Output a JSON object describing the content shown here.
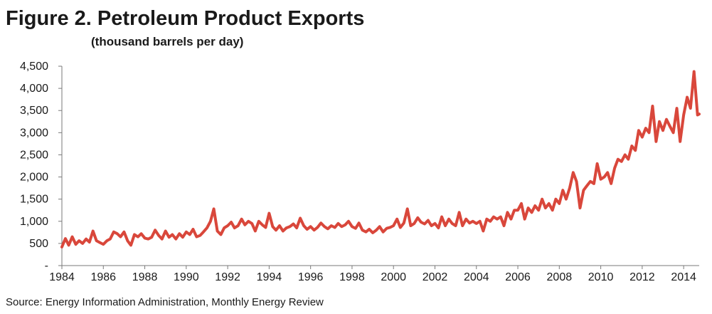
{
  "chart_data": {
    "type": "line",
    "title": "Figure 2. Petroleum Product Exports",
    "subtitle": "(thousand barrels per day)",
    "source": "Source: Energy Information Administration, Monthly Energy Review",
    "xlabel": "",
    "ylabel": "",
    "xlim": [
      1984,
      2014.75
    ],
    "ylim": [
      0,
      4500
    ],
    "y_ticks": [
      {
        "value": 0,
        "label": "-"
      },
      {
        "value": 500,
        "label": "500"
      },
      {
        "value": 1000,
        "label": "1,000"
      },
      {
        "value": 1500,
        "label": "1,500"
      },
      {
        "value": 2000,
        "label": "2,000"
      },
      {
        "value": 2500,
        "label": "2,500"
      },
      {
        "value": 3000,
        "label": "3,000"
      },
      {
        "value": 3500,
        "label": "3,500"
      },
      {
        "value": 4000,
        "label": "4,000"
      },
      {
        "value": 4500,
        "label": "4,500"
      }
    ],
    "x_ticks": [
      {
        "value": 1984,
        "label": "1984"
      },
      {
        "value": 1986,
        "label": "1986"
      },
      {
        "value": 1988,
        "label": "1988"
      },
      {
        "value": 1990,
        "label": "1990"
      },
      {
        "value": 1992,
        "label": "1992"
      },
      {
        "value": 1994,
        "label": "1994"
      },
      {
        "value": 1996,
        "label": "1996"
      },
      {
        "value": 1998,
        "label": "1998"
      },
      {
        "value": 2000,
        "label": "2000"
      },
      {
        "value": 2002,
        "label": "2002"
      },
      {
        "value": 2004,
        "label": "2004"
      },
      {
        "value": 2006,
        "label": "2006"
      },
      {
        "value": 2008,
        "label": "2008"
      },
      {
        "value": 2010,
        "label": "2010"
      },
      {
        "value": 2012,
        "label": "2012"
      },
      {
        "value": 2014,
        "label": "2014"
      }
    ],
    "grid": false,
    "series": [
      {
        "color": "#d9473b",
        "points": [
          [
            1984.0,
            420
          ],
          [
            1984.17,
            610
          ],
          [
            1984.33,
            460
          ],
          [
            1984.5,
            650
          ],
          [
            1984.67,
            480
          ],
          [
            1984.83,
            560
          ],
          [
            1985.0,
            500
          ],
          [
            1985.17,
            600
          ],
          [
            1985.33,
            530
          ],
          [
            1985.5,
            780
          ],
          [
            1985.67,
            560
          ],
          [
            1985.83,
            520
          ],
          [
            1986.0,
            480
          ],
          [
            1986.17,
            560
          ],
          [
            1986.33,
            600
          ],
          [
            1986.5,
            760
          ],
          [
            1986.67,
            720
          ],
          [
            1986.83,
            650
          ],
          [
            1987.0,
            760
          ],
          [
            1987.17,
            560
          ],
          [
            1987.33,
            460
          ],
          [
            1987.5,
            700
          ],
          [
            1987.67,
            650
          ],
          [
            1987.83,
            720
          ],
          [
            1988.0,
            620
          ],
          [
            1988.17,
            600
          ],
          [
            1988.33,
            640
          ],
          [
            1988.5,
            800
          ],
          [
            1988.67,
            680
          ],
          [
            1988.83,
            600
          ],
          [
            1989.0,
            780
          ],
          [
            1989.17,
            640
          ],
          [
            1989.33,
            700
          ],
          [
            1989.5,
            600
          ],
          [
            1989.67,
            720
          ],
          [
            1989.83,
            640
          ],
          [
            1990.0,
            760
          ],
          [
            1990.17,
            700
          ],
          [
            1990.33,
            820
          ],
          [
            1990.5,
            650
          ],
          [
            1990.67,
            680
          ],
          [
            1990.83,
            760
          ],
          [
            1991.0,
            850
          ],
          [
            1991.17,
            1000
          ],
          [
            1991.33,
            1280
          ],
          [
            1991.5,
            780
          ],
          [
            1991.67,
            700
          ],
          [
            1991.83,
            850
          ],
          [
            1992.0,
            900
          ],
          [
            1992.17,
            980
          ],
          [
            1992.33,
            850
          ],
          [
            1992.5,
            900
          ],
          [
            1992.67,
            1050
          ],
          [
            1992.83,
            920
          ],
          [
            1993.0,
            1000
          ],
          [
            1993.17,
            950
          ],
          [
            1993.33,
            780
          ],
          [
            1993.5,
            1000
          ],
          [
            1993.67,
            920
          ],
          [
            1993.83,
            860
          ],
          [
            1994.0,
            1180
          ],
          [
            1994.17,
            880
          ],
          [
            1994.33,
            800
          ],
          [
            1994.5,
            900
          ],
          [
            1994.67,
            780
          ],
          [
            1994.83,
            850
          ],
          [
            1995.0,
            880
          ],
          [
            1995.17,
            940
          ],
          [
            1995.33,
            850
          ],
          [
            1995.5,
            1070
          ],
          [
            1995.67,
            900
          ],
          [
            1995.83,
            820
          ],
          [
            1996.0,
            880
          ],
          [
            1996.17,
            800
          ],
          [
            1996.33,
            860
          ],
          [
            1996.5,
            960
          ],
          [
            1996.67,
            880
          ],
          [
            1996.83,
            830
          ],
          [
            1997.0,
            900
          ],
          [
            1997.17,
            860
          ],
          [
            1997.33,
            950
          ],
          [
            1997.5,
            880
          ],
          [
            1997.67,
            920
          ],
          [
            1997.83,
            1000
          ],
          [
            1998.0,
            880
          ],
          [
            1998.17,
            840
          ],
          [
            1998.33,
            960
          ],
          [
            1998.5,
            800
          ],
          [
            1998.67,
            760
          ],
          [
            1998.83,
            820
          ],
          [
            1999.0,
            740
          ],
          [
            1999.17,
            800
          ],
          [
            1999.33,
            880
          ],
          [
            1999.5,
            760
          ],
          [
            1999.67,
            840
          ],
          [
            1999.83,
            860
          ],
          [
            2000.0,
            900
          ],
          [
            2000.17,
            1050
          ],
          [
            2000.33,
            860
          ],
          [
            2000.5,
            960
          ],
          [
            2000.67,
            1280
          ],
          [
            2000.83,
            900
          ],
          [
            2001.0,
            950
          ],
          [
            2001.17,
            1080
          ],
          [
            2001.33,
            980
          ],
          [
            2001.5,
            940
          ],
          [
            2001.67,
            1020
          ],
          [
            2001.83,
            900
          ],
          [
            2002.0,
            950
          ],
          [
            2002.17,
            850
          ],
          [
            2002.33,
            1100
          ],
          [
            2002.5,
            900
          ],
          [
            2002.67,
            1050
          ],
          [
            2002.83,
            950
          ],
          [
            2003.0,
            900
          ],
          [
            2003.17,
            1200
          ],
          [
            2003.33,
            900
          ],
          [
            2003.5,
            1050
          ],
          [
            2003.67,
            960
          ],
          [
            2003.83,
            1000
          ],
          [
            2004.0,
            950
          ],
          [
            2004.17,
            1000
          ],
          [
            2004.33,
            780
          ],
          [
            2004.5,
            1050
          ],
          [
            2004.67,
            1000
          ],
          [
            2004.83,
            1100
          ],
          [
            2005.0,
            1050
          ],
          [
            2005.17,
            1100
          ],
          [
            2005.33,
            900
          ],
          [
            2005.5,
            1200
          ],
          [
            2005.67,
            1050
          ],
          [
            2005.83,
            1250
          ],
          [
            2006.0,
            1250
          ],
          [
            2006.17,
            1400
          ],
          [
            2006.33,
            1050
          ],
          [
            2006.5,
            1300
          ],
          [
            2006.67,
            1200
          ],
          [
            2006.83,
            1350
          ],
          [
            2007.0,
            1250
          ],
          [
            2007.17,
            1500
          ],
          [
            2007.33,
            1300
          ],
          [
            2007.5,
            1400
          ],
          [
            2007.67,
            1250
          ],
          [
            2007.83,
            1500
          ],
          [
            2008.0,
            1400
          ],
          [
            2008.17,
            1700
          ],
          [
            2008.33,
            1500
          ],
          [
            2008.5,
            1750
          ],
          [
            2008.67,
            2100
          ],
          [
            2008.83,
            1900
          ],
          [
            2009.0,
            1300
          ],
          [
            2009.17,
            1700
          ],
          [
            2009.33,
            1800
          ],
          [
            2009.5,
            1900
          ],
          [
            2009.67,
            1850
          ],
          [
            2009.83,
            2300
          ],
          [
            2010.0,
            1950
          ],
          [
            2010.17,
            2000
          ],
          [
            2010.33,
            2100
          ],
          [
            2010.5,
            1850
          ],
          [
            2010.67,
            2200
          ],
          [
            2010.83,
            2400
          ],
          [
            2011.0,
            2350
          ],
          [
            2011.17,
            2500
          ],
          [
            2011.33,
            2400
          ],
          [
            2011.5,
            2700
          ],
          [
            2011.67,
            2600
          ],
          [
            2011.83,
            3050
          ],
          [
            2012.0,
            2900
          ],
          [
            2012.17,
            3100
          ],
          [
            2012.33,
            3000
          ],
          [
            2012.5,
            3600
          ],
          [
            2012.67,
            2800
          ],
          [
            2012.83,
            3250
          ],
          [
            2013.0,
            3050
          ],
          [
            2013.17,
            3300
          ],
          [
            2013.33,
            3150
          ],
          [
            2013.5,
            3000
          ],
          [
            2013.67,
            3550
          ],
          [
            2013.83,
            2800
          ],
          [
            2014.0,
            3400
          ],
          [
            2014.17,
            3800
          ],
          [
            2014.33,
            3550
          ],
          [
            2014.5,
            4380
          ],
          [
            2014.67,
            3400
          ],
          [
            2014.75,
            3420
          ]
        ]
      }
    ]
  }
}
